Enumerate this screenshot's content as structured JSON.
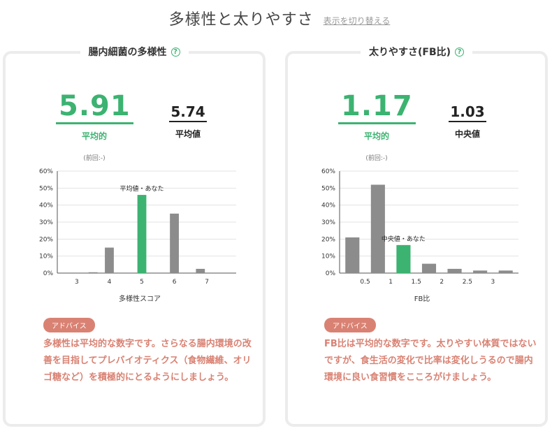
{
  "header": {
    "title": "多様性と太りやすさ",
    "toggle_label": "表示を切り替える"
  },
  "diversity": {
    "title": "腸内細菌の多様性",
    "help": "?",
    "you_value": "5.91",
    "you_label": "平均的",
    "previous": "(前回:-)",
    "ref_value": "5.74",
    "ref_label": "平均値",
    "advice_label": "アドバイス",
    "advice_text": "多様性は平均的な数字です。さらなる腸内環境の改善を目指してプレバイオティクス（食物繊維、オリゴ糖など）を積極的にとるようにしましょう。"
  },
  "fb": {
    "title": "太りやすさ(FB比)",
    "help": "?",
    "you_value": "1.17",
    "you_label": "平均的",
    "previous": "(前回:-)",
    "ref_value": "1.03",
    "ref_label": "中央値",
    "advice_label": "アドバイス",
    "advice_text": "FB比は平均的な数字です。太りやすい体質ではないですが、食生活の変化で比率は変化しうるので腸内環境に良い食習慣をこころがけましょう。"
  },
  "colors": {
    "accent": "#3cb371",
    "bar": "#8c8c8c",
    "advice": "#d98273"
  },
  "chart_data": [
    {
      "type": "bar",
      "xlabel": "多様性スコア",
      "ylabel": "",
      "ylim": [
        0,
        60
      ],
      "yticks": [
        "0%",
        "10%",
        "20%",
        "30%",
        "40%",
        "50%",
        "60%"
      ],
      "x_tick_labels": [
        "3",
        "4",
        "5",
        "6",
        "7"
      ],
      "x_tick_positions": [
        3,
        4,
        5,
        6,
        7
      ],
      "x_range": [
        2.4,
        7.9
      ],
      "bars": [
        {
          "x": 3.5,
          "value": 0.5,
          "highlight": false
        },
        {
          "x": 4.0,
          "value": 15,
          "highlight": false
        },
        {
          "x": 5.0,
          "value": 46,
          "highlight": true
        },
        {
          "x": 6.0,
          "value": 35,
          "highlight": false
        },
        {
          "x": 6.8,
          "value": 2.5,
          "highlight": false
        }
      ],
      "annotation": "平均値・あなた",
      "annotation_bar": 2,
      "grid": true
    },
    {
      "type": "bar",
      "xlabel": "FB比",
      "ylabel": "",
      "ylim": [
        0,
        60
      ],
      "yticks": [
        "0%",
        "10%",
        "20%",
        "30%",
        "40%",
        "50%",
        "60%"
      ],
      "x_tick_labels": [
        "0.5",
        "1",
        "1.5",
        "2",
        "2.5",
        "3"
      ],
      "x_tick_positions": [
        0.5,
        1,
        1.5,
        2,
        2.5,
        3
      ],
      "x_range": [
        0.0,
        3.5
      ],
      "bars": [
        {
          "x": 0.25,
          "value": 21,
          "highlight": false
        },
        {
          "x": 0.75,
          "value": 52,
          "highlight": false
        },
        {
          "x": 1.25,
          "value": 16.5,
          "highlight": true
        },
        {
          "x": 1.75,
          "value": 5.5,
          "highlight": false
        },
        {
          "x": 2.25,
          "value": 2.5,
          "highlight": false
        },
        {
          "x": 2.75,
          "value": 1.5,
          "highlight": false
        },
        {
          "x": 3.25,
          "value": 1.5,
          "highlight": false
        }
      ],
      "annotation": "中央値・あなた",
      "annotation_bar": 2,
      "grid": true
    }
  ]
}
